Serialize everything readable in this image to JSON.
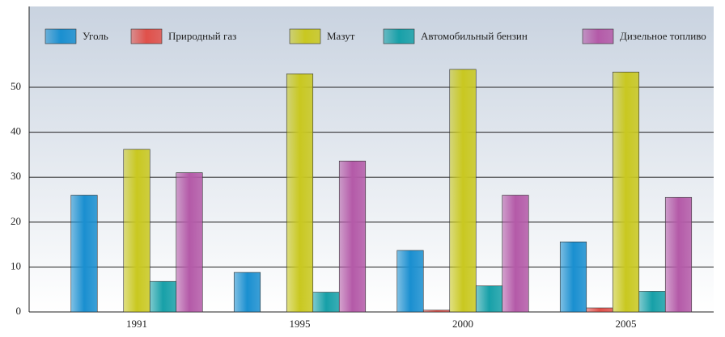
{
  "chart_data": {
    "type": "bar",
    "categories": [
      "1991",
      "1995",
      "2000",
      "2005"
    ],
    "series": [
      {
        "name": "Уголь",
        "color": "#1a8fd0",
        "values": [
          26,
          8.8,
          13.7,
          15.6
        ]
      },
      {
        "name": "Природный газ",
        "color": "#e0504a",
        "values": [
          0,
          0,
          0.4,
          0.9
        ]
      },
      {
        "name": "Мазут",
        "color": "#c9c820",
        "values": [
          36.2,
          53,
          54,
          53.4
        ]
      },
      {
        "name": "Автомобильный бензин",
        "color": "#17a0a8",
        "values": [
          6.8,
          4.4,
          5.8,
          4.6
        ]
      },
      {
        "name": "Дизельное топливо",
        "color": "#b45aa8",
        "values": [
          31,
          33.6,
          26,
          25.5
        ]
      }
    ],
    "ylim": [
      0,
      68
    ],
    "yticks": [
      0,
      10,
      20,
      30,
      40,
      50
    ],
    "grid": true,
    "legend": "top"
  }
}
